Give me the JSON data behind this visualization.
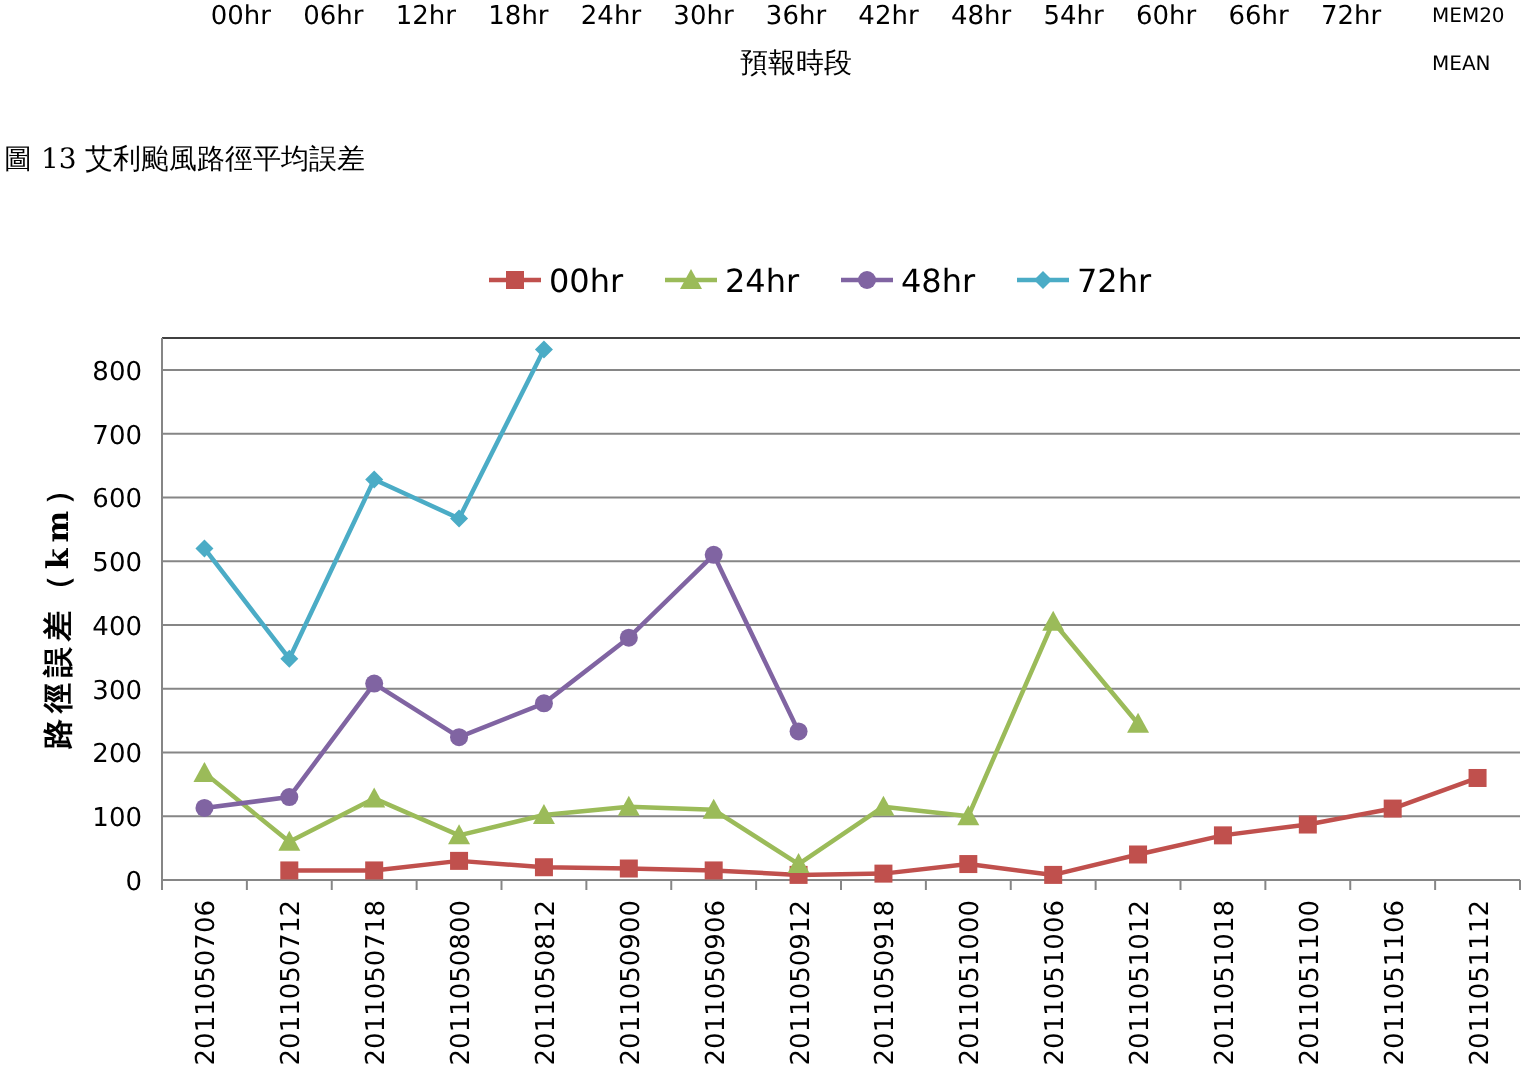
{
  "chart_data": {
    "type": "line",
    "ylabel": "路徑誤差（km）",
    "annotations": [
      "00hr 06hr 12hr 18hr 24hr 30hr 36hr 42hr 48hr 54hr 60hr 66hr 72hr",
      "預報時段",
      "MEM20",
      "MEAN",
      "圖 13 艾利颱風路徑平均誤差"
    ],
    "categories": [
      "2011050706",
      "2011050712",
      "2011050718",
      "2011050800",
      "2011050812",
      "2011050900",
      "2011050906",
      "2011050912",
      "2011050918",
      "2011051000",
      "2011051006",
      "2011051012",
      "2011051018",
      "2011051100",
      "2011051106",
      "2011051112"
    ],
    "series": [
      {
        "name": "00hr",
        "color": "#c0504d",
        "marker": "square",
        "values": [
          null,
          15,
          15,
          30,
          20,
          18,
          15,
          8,
          10,
          25,
          8,
          40,
          70,
          87,
          112,
          160
        ]
      },
      {
        "name": "24hr",
        "color": "#9bbb59",
        "marker": "triangle",
        "values": [
          168,
          60,
          128,
          70,
          102,
          115,
          110,
          25,
          115,
          100,
          405,
          245,
          null,
          null,
          null,
          null
        ]
      },
      {
        "name": "48hr",
        "color": "#8064a2",
        "marker": "circle",
        "values": [
          113,
          130,
          308,
          224,
          277,
          380,
          510,
          233,
          null,
          null,
          null,
          null,
          null,
          null,
          null,
          null
        ]
      },
      {
        "name": "72hr",
        "color": "#4bacc6",
        "marker": "diamond",
        "values": [
          520,
          347,
          628,
          567,
          832,
          null,
          null,
          null,
          null,
          null,
          null,
          null,
          null,
          null,
          null,
          null
        ]
      }
    ],
    "ylim": [
      0,
      850
    ],
    "yticks": [
      0,
      100,
      200,
      300,
      400,
      500,
      600,
      700,
      800
    ],
    "grid": "y",
    "legend": "top"
  }
}
